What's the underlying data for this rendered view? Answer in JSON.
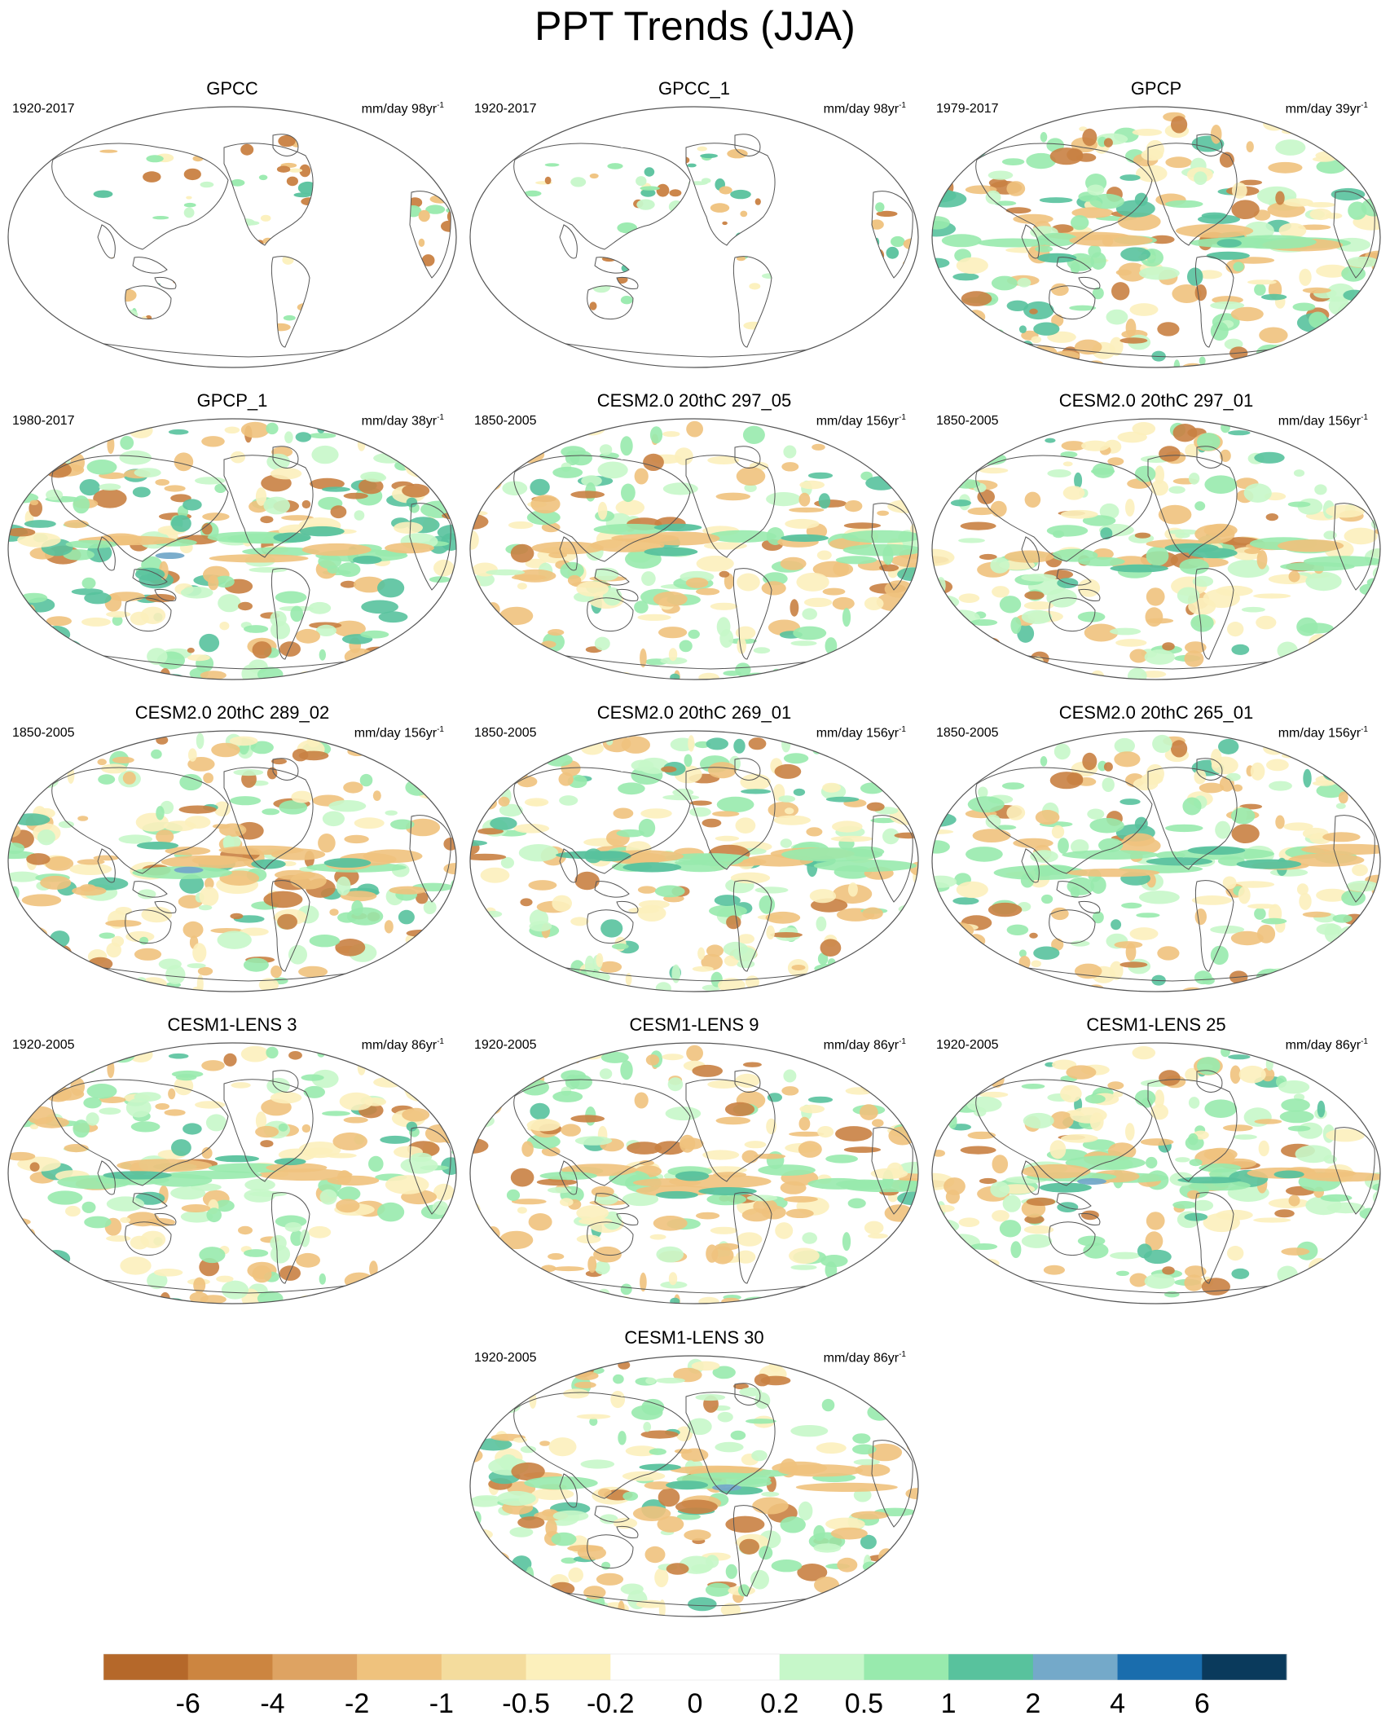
{
  "title": "PPT Trends (JJA)",
  "panels": [
    {
      "title": "GPCC",
      "period": "1920-2017",
      "units": "mm/day 98yr",
      "exp": "-1",
      "pattern": "land"
    },
    {
      "title": "GPCC_1",
      "period": "1920-2017",
      "units": "mm/day 98yr",
      "exp": "-1",
      "pattern": "land"
    },
    {
      "title": "GPCP",
      "period": "1979-2017",
      "units": "mm/day 39yr",
      "exp": "-1",
      "pattern": "global"
    },
    {
      "title": "GPCP_1",
      "period": "1980-2017",
      "units": "mm/day 38yr",
      "exp": "-1",
      "pattern": "global"
    },
    {
      "title": "CESM2.0 20thC 297_05",
      "period": "1850-2005",
      "units": "mm/day 156yr",
      "exp": "-1",
      "pattern": "model"
    },
    {
      "title": "CESM2.0 20thC 297_01",
      "period": "1850-2005",
      "units": "mm/day 156yr",
      "exp": "-1",
      "pattern": "model"
    },
    {
      "title": "CESM2.0 20thC 289_02",
      "period": "1850-2005",
      "units": "mm/day 156yr",
      "exp": "-1",
      "pattern": "model"
    },
    {
      "title": "CESM2.0 20thC 269_01",
      "period": "1850-2005",
      "units": "mm/day 156yr",
      "exp": "-1",
      "pattern": "model"
    },
    {
      "title": "CESM2.0 20thC 265_01",
      "period": "1850-2005",
      "units": "mm/day 156yr",
      "exp": "-1",
      "pattern": "model"
    },
    {
      "title": "CESM1-LENS 3",
      "period": "1920-2005",
      "units": "mm/day 86yr",
      "exp": "-1",
      "pattern": "model"
    },
    {
      "title": "CESM1-LENS 9",
      "period": "1920-2005",
      "units": "mm/day 86yr",
      "exp": "-1",
      "pattern": "model"
    },
    {
      "title": "CESM1-LENS 25",
      "period": "1920-2005",
      "units": "mm/day 86yr",
      "exp": "-1",
      "pattern": "model"
    },
    {
      "title": "CESM1-LENS 30",
      "period": "1920-2005",
      "units": "mm/day 86yr",
      "exp": "-1",
      "pattern": "model"
    }
  ],
  "colorbar": {
    "colors": [
      "#b5682a",
      "#cc8540",
      "#dea362",
      "#efc27d",
      "#f4dc9d",
      "#fcf0bc",
      "#ffffff",
      "#ffffff",
      "#c6f7c9",
      "#98eaad",
      "#58c29d",
      "#74a9c9",
      "#1a6dad",
      "#0a3a5c"
    ],
    "labels": [
      "-6",
      "-4",
      "-2",
      "-1",
      "-0.5",
      "-0.2",
      "0",
      "0.2",
      "0.5",
      "1",
      "2",
      "4",
      "6"
    ]
  },
  "colors": {
    "dry_strong": "#c98142",
    "dry": "#efc27d",
    "dry_light": "#fcf0bc",
    "wet_light": "#c6f7c9",
    "wet": "#98eaad",
    "wet_strong": "#58c29d",
    "wet_max": "#74a9c9",
    "coastline": "#555555"
  }
}
